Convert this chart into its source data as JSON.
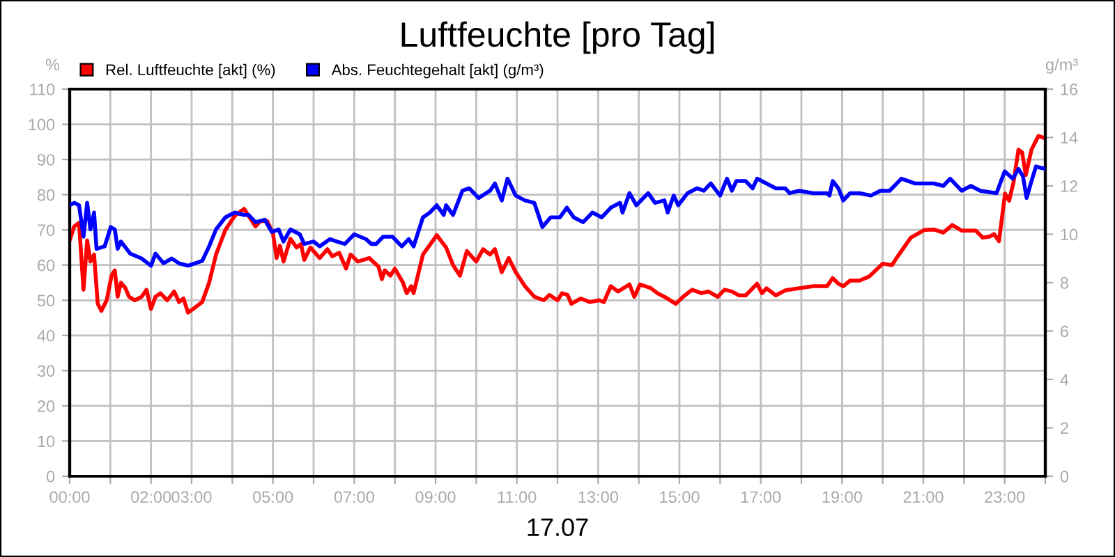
{
  "chart_data": {
    "type": "line",
    "title": "Luftfeuchte [pro Tag]",
    "xlabel": "17.07",
    "ylabel": "%",
    "y2label": "g/m³",
    "xlim": [
      0,
      24
    ],
    "xticks": [
      {
        "value": 0,
        "label": "00:00"
      },
      {
        "value": 1,
        "label": null
      },
      {
        "value": 2,
        "label": "02:00"
      },
      {
        "value": 3,
        "label": "03:00"
      },
      {
        "value": 4,
        "label": null
      },
      {
        "value": 5,
        "label": "05:00"
      },
      {
        "value": 6,
        "label": null
      },
      {
        "value": 7,
        "label": "07:00"
      },
      {
        "value": 8,
        "label": null
      },
      {
        "value": 9,
        "label": "09:00"
      },
      {
        "value": 10,
        "label": null
      },
      {
        "value": 11,
        "label": "11:00"
      },
      {
        "value": 12,
        "label": null
      },
      {
        "value": 13,
        "label": "13:00"
      },
      {
        "value": 14,
        "label": null
      },
      {
        "value": 15,
        "label": "15:00"
      },
      {
        "value": 16,
        "label": null
      },
      {
        "value": 17,
        "label": "17:00"
      },
      {
        "value": 18,
        "label": null
      },
      {
        "value": 19,
        "label": "19:00"
      },
      {
        "value": 20,
        "label": null
      },
      {
        "value": 21,
        "label": "21:00"
      },
      {
        "value": 22,
        "label": null
      },
      {
        "value": 23,
        "label": "23:00"
      },
      {
        "value": 24,
        "label": null
      }
    ],
    "ylim": [
      0,
      110
    ],
    "yticks": [
      0,
      10,
      20,
      30,
      40,
      50,
      60,
      70,
      80,
      90,
      100,
      110
    ],
    "y2lim": [
      0,
      16
    ],
    "y2ticks": [
      0,
      2,
      4,
      6,
      8,
      10,
      12,
      14,
      16
    ],
    "grid": true,
    "legend": "top left",
    "marker": "none",
    "line_style": "solid",
    "series": [
      {
        "name": "Rel. Luftfeuchte [akt] (%)",
        "color": "#ff0000",
        "axis": "y",
        "x": [
          0,
          0.11,
          0.23,
          0.34,
          0.43,
          0.51,
          0.6,
          0.69,
          0.78,
          0.91,
          1.03,
          1.11,
          1.18,
          1.26,
          1.37,
          1.46,
          1.6,
          1.77,
          1.89,
          2.0,
          2.11,
          2.23,
          2.4,
          2.57,
          2.69,
          2.8,
          2.91,
          3.09,
          3.26,
          3.43,
          3.6,
          3.83,
          4.06,
          4.29,
          4.4,
          4.57,
          4.69,
          4.86,
          5.0,
          5.09,
          5.17,
          5.26,
          5.43,
          5.58,
          5.69,
          5.77,
          5.92,
          6.15,
          6.34,
          6.46,
          6.63,
          6.8,
          6.91,
          7.09,
          7.37,
          7.6,
          7.68,
          7.75,
          7.89,
          8.0,
          8.2,
          8.29,
          8.4,
          8.46,
          8.69,
          9.03,
          9.26,
          9.43,
          9.6,
          9.77,
          10.0,
          10.17,
          10.34,
          10.46,
          10.63,
          10.8,
          10.97,
          11.2,
          11.43,
          11.66,
          11.8,
          12.0,
          12.11,
          12.25,
          12.34,
          12.57,
          12.8,
          13.03,
          13.14,
          13.31,
          13.49,
          13.77,
          13.89,
          14.03,
          14.29,
          14.46,
          14.63,
          14.91,
          15.09,
          15.31,
          15.54,
          15.71,
          15.94,
          16.11,
          16.29,
          16.46,
          16.63,
          16.91,
          17.03,
          17.14,
          17.37,
          17.6,
          17.94,
          18.29,
          18.63,
          18.77,
          18.91,
          19.03,
          19.2,
          19.43,
          19.66,
          20.0,
          20.23,
          20.34,
          20.69,
          21.03,
          21.26,
          21.49,
          21.71,
          21.94,
          22.29,
          22.46,
          22.63,
          22.74,
          22.86,
          23.01,
          23.11,
          23.22,
          23.34,
          23.43,
          23.52,
          23.66,
          23.83,
          24.0
        ],
        "values": [
          67,
          71,
          72,
          53,
          67,
          61,
          63,
          49,
          47,
          50,
          57,
          58.5,
          51,
          55,
          53.5,
          51,
          50,
          51,
          53,
          47.5,
          51,
          52,
          50,
          52.5,
          49.5,
          50.5,
          46.5,
          48,
          49.5,
          55,
          63,
          70,
          74,
          76,
          74,
          71,
          72.5,
          72.5,
          69,
          62,
          65.5,
          61,
          67.5,
          65,
          66,
          61.5,
          65,
          62,
          64.5,
          62.5,
          63.5,
          59,
          63,
          61,
          62,
          59.5,
          56,
          58.5,
          57,
          59,
          55,
          52,
          54,
          52,
          63,
          68.5,
          65,
          60,
          57,
          64,
          61,
          64.5,
          63,
          64.5,
          58,
          62,
          58,
          54,
          51,
          50,
          51.5,
          50,
          52,
          51.5,
          49,
          50.5,
          49.5,
          50,
          49.5,
          54,
          52.5,
          54.5,
          51,
          54.5,
          53.5,
          52,
          51,
          49,
          51,
          53,
          52,
          52.5,
          51,
          53,
          52.5,
          51.4,
          51.4,
          54.7,
          52,
          53.4,
          51.4,
          52.8,
          53.4,
          54,
          54,
          56.3,
          54.7,
          54,
          55.6,
          55.6,
          56.7,
          60.4,
          60,
          62,
          67.8,
          70,
          70.1,
          69.2,
          71.4,
          69.8,
          69.8,
          67.8,
          68.1,
          68.8,
          66.8,
          80.3,
          78.3,
          83.6,
          92.8,
          92,
          85.6,
          92.8,
          96.7,
          96
        ]
      },
      {
        "name": "Abs. Feuchtegehalt [akt] (g/m³)",
        "color": "#0000ff",
        "axis": "y2",
        "x": [
          0,
          0.11,
          0.23,
          0.34,
          0.43,
          0.51,
          0.6,
          0.66,
          0.86,
          1.01,
          1.11,
          1.18,
          1.26,
          1.49,
          1.77,
          2.0,
          2.11,
          2.31,
          2.51,
          2.69,
          2.91,
          3.09,
          3.26,
          3.43,
          3.6,
          3.83,
          4.06,
          4.29,
          4.4,
          4.57,
          4.8,
          4.97,
          5.14,
          5.26,
          5.43,
          5.66,
          5.77,
          6.0,
          6.15,
          6.4,
          6.57,
          6.77,
          7.0,
          7.29,
          7.42,
          7.54,
          7.71,
          7.94,
          8.17,
          8.34,
          8.46,
          8.69,
          8.86,
          9.03,
          9.2,
          9.26,
          9.43,
          9.66,
          9.83,
          10.06,
          10.34,
          10.46,
          10.63,
          10.77,
          10.97,
          11.2,
          11.43,
          11.63,
          11.83,
          12.06,
          12.23,
          12.4,
          12.63,
          12.86,
          13.09,
          13.31,
          13.54,
          13.6,
          13.77,
          13.94,
          14.23,
          14.4,
          14.63,
          14.71,
          14.86,
          14.97,
          15.2,
          15.43,
          15.6,
          15.77,
          16.0,
          16.17,
          16.29,
          16.4,
          16.63,
          16.8,
          16.91,
          17.14,
          17.37,
          17.6,
          17.71,
          17.94,
          18.29,
          18.63,
          18.69,
          18.77,
          18.91,
          19.03,
          19.2,
          19.43,
          19.71,
          19.94,
          20.17,
          20.46,
          20.8,
          21.26,
          21.49,
          21.66,
          21.94,
          22.17,
          22.4,
          22.8,
          23.0,
          23.2,
          23.34,
          23.45,
          23.54,
          23.66,
          23.77,
          24.0
        ],
        "values": [
          11.2,
          11.3,
          11.2,
          9.9,
          11.3,
          10.2,
          10.9,
          9.4,
          9.5,
          10.3,
          10.2,
          9.4,
          9.7,
          9.2,
          9.0,
          8.7,
          9.2,
          8.8,
          9.0,
          8.8,
          8.7,
          8.8,
          8.9,
          9.5,
          10.2,
          10.7,
          10.9,
          10.8,
          10.8,
          10.5,
          10.6,
          10.1,
          10.2,
          9.7,
          10.2,
          10.0,
          9.6,
          9.7,
          9.5,
          9.8,
          9.7,
          9.6,
          10.0,
          9.8,
          9.6,
          9.6,
          9.9,
          9.9,
          9.5,
          9.8,
          9.5,
          10.7,
          10.9,
          11.2,
          10.8,
          11.2,
          10.8,
          11.8,
          11.9,
          11.5,
          11.8,
          12.1,
          11.4,
          12.3,
          11.6,
          11.4,
          11.3,
          10.3,
          10.7,
          10.7,
          11.1,
          10.7,
          10.5,
          10.9,
          10.7,
          11.1,
          11.3,
          10.9,
          11.7,
          11.2,
          11.7,
          11.3,
          11.4,
          10.9,
          11.6,
          11.2,
          11.7,
          11.9,
          11.8,
          12.1,
          11.6,
          12.3,
          11.8,
          12.2,
          12.2,
          11.9,
          12.3,
          12.1,
          11.9,
          11.9,
          11.7,
          11.8,
          11.7,
          11.7,
          11.6,
          12.2,
          11.9,
          11.4,
          11.7,
          11.7,
          11.6,
          11.8,
          11.8,
          12.3,
          12.1,
          12.1,
          12.0,
          12.3,
          11.8,
          12.0,
          11.8,
          11.7,
          12.6,
          12.3,
          12.7,
          12.4,
          11.5,
          12.2,
          12.8,
          12.7
        ]
      }
    ]
  }
}
